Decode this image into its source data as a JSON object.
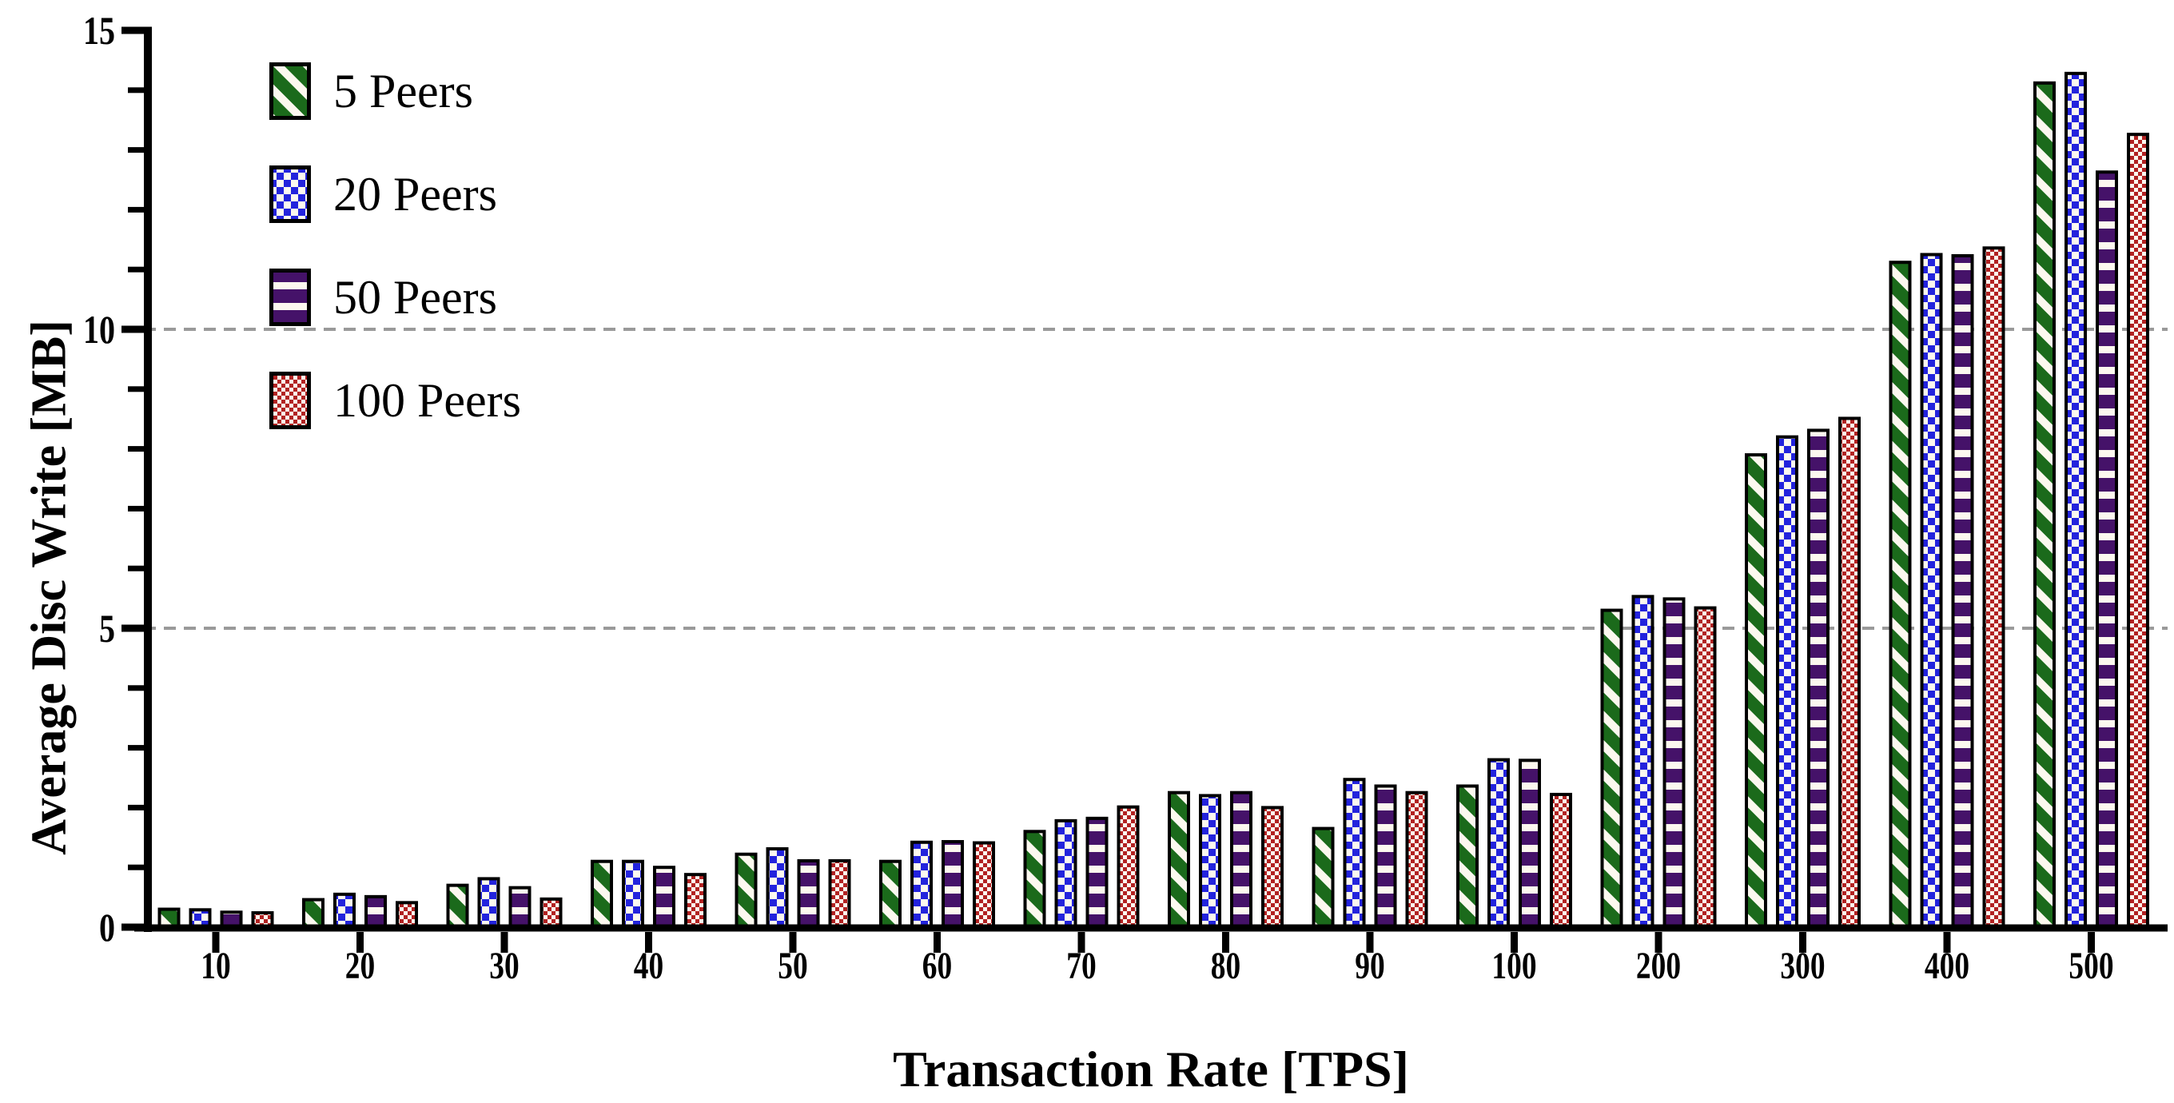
{
  "chart_data": {
    "type": "bar",
    "title": "",
    "xlabel": "Transaction Rate [TPS]",
    "ylabel": "Average Disc Write [MB]",
    "categories": [
      "10",
      "20",
      "30",
      "40",
      "50",
      "60",
      "70",
      "80",
      "90",
      "100",
      "200",
      "300",
      "400",
      "500"
    ],
    "series": [
      {
        "name": "5 Peers",
        "pattern": "diagonal-stripes",
        "color": "#1b6a1b",
        "values": [
          0.3,
          0.46,
          0.7,
          1.1,
          1.22,
          1.1,
          1.6,
          2.25,
          1.65,
          2.36,
          5.3,
          7.9,
          11.12,
          14.12
        ]
      },
      {
        "name": "20 Peers",
        "pattern": "checkerboard",
        "color": "#2323dd",
        "values": [
          0.29,
          0.55,
          0.81,
          1.1,
          1.31,
          1.42,
          1.78,
          2.2,
          2.47,
          2.8,
          5.53,
          8.2,
          11.25,
          14.28
        ]
      },
      {
        "name": "50 Peers",
        "pattern": "horizontal-stripes",
        "color": "#451269",
        "values": [
          0.25,
          0.51,
          0.66,
          1.0,
          1.11,
          1.43,
          1.82,
          2.25,
          2.36,
          2.79,
          5.49,
          8.31,
          11.23,
          12.63
        ]
      },
      {
        "name": "100 Peers",
        "pattern": "fine-checkerboard",
        "color": "#b22222",
        "values": [
          0.24,
          0.41,
          0.47,
          0.88,
          1.11,
          1.41,
          2.01,
          2.0,
          2.25,
          2.22,
          5.34,
          8.51,
          11.36,
          13.26
        ]
      }
    ],
    "ylim": [
      0,
      15
    ],
    "y_major_ticks": [
      "0",
      "5",
      "10",
      "15"
    ],
    "y_minor_tick_step": 1,
    "gridlines_at": [
      5,
      10
    ],
    "grid": "dashed horizontal gridlines",
    "legend_position": "top-left inside plot",
    "colors": {
      "pattern_background": "#fcf8ef",
      "gridline": "#9a9a9a",
      "axis": "#000000"
    }
  }
}
